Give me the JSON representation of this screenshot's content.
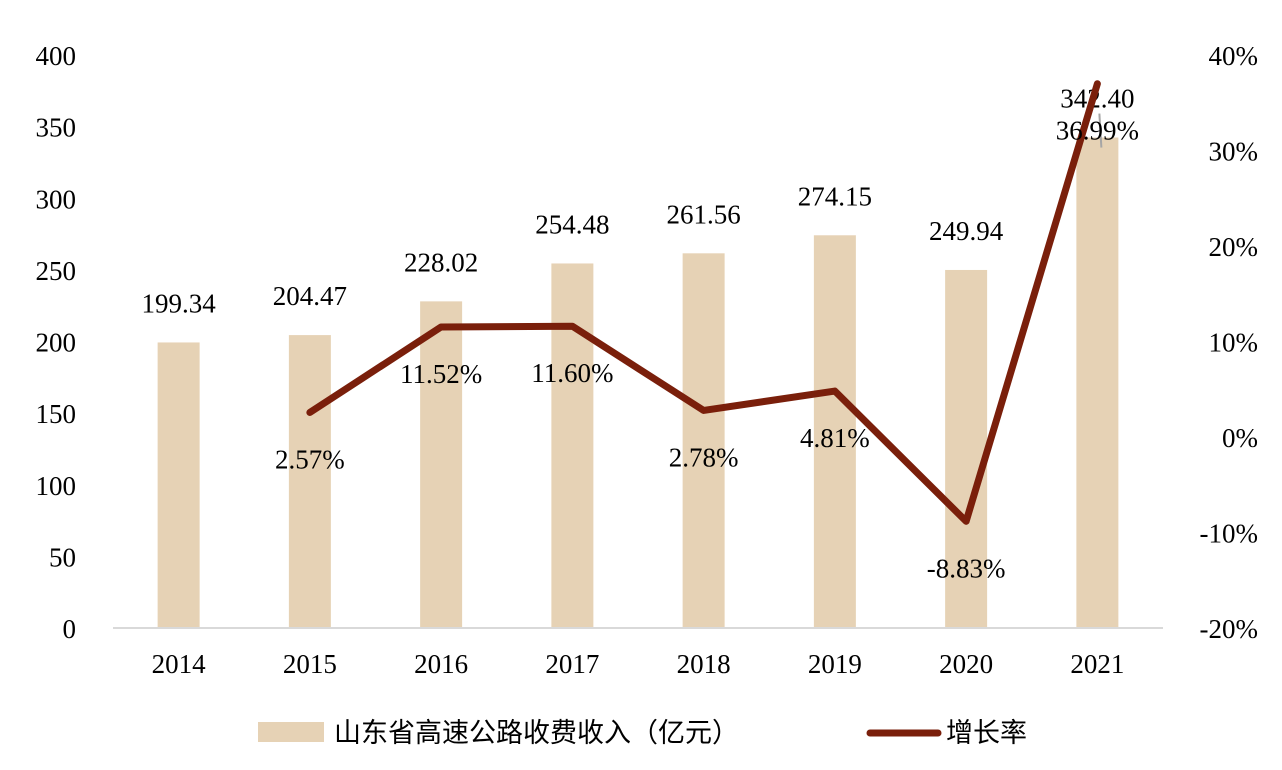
{
  "chart_data": {
    "type": "bar",
    "categories": [
      "2014",
      "2015",
      "2016",
      "2017",
      "2018",
      "2019",
      "2020",
      "2021"
    ],
    "series": [
      {
        "name": "山东省高速公路收费收入（亿元）",
        "type": "bar",
        "axis": "left",
        "values": [
          199.34,
          204.47,
          228.02,
          254.48,
          261.56,
          274.15,
          249.94,
          342.4
        ],
        "labels": [
          "199.34",
          "204.47",
          "228.02",
          "254.48",
          "261.56",
          "274.15",
          "249.94",
          "342.40"
        ],
        "color": "#e6d2b5"
      },
      {
        "name": "增长率",
        "type": "line",
        "axis": "right",
        "values": [
          null,
          2.57,
          11.52,
          11.6,
          2.78,
          4.81,
          -8.83,
          36.99
        ],
        "labels": [
          "",
          "2.57%",
          "11.52%",
          "11.60%",
          "2.78%",
          "4.81%",
          "-8.83%",
          "36.99%"
        ],
        "color": "#7a1f0b"
      }
    ],
    "left_axis": {
      "ylim": [
        0,
        400
      ],
      "ticks": [
        0,
        50,
        100,
        150,
        200,
        250,
        300,
        350,
        400
      ],
      "tick_labels": [
        "0",
        "50",
        "100",
        "150",
        "200",
        "250",
        "300",
        "350",
        "400"
      ]
    },
    "right_axis": {
      "ylim": [
        -20,
        40
      ],
      "ticks": [
        -20,
        -10,
        0,
        10,
        20,
        30,
        40
      ],
      "tick_labels": [
        "-20%",
        "-10%",
        "0%",
        "10%",
        "20%",
        "30%",
        "40%"
      ]
    },
    "grid": false,
    "legend_position": "bottom"
  }
}
